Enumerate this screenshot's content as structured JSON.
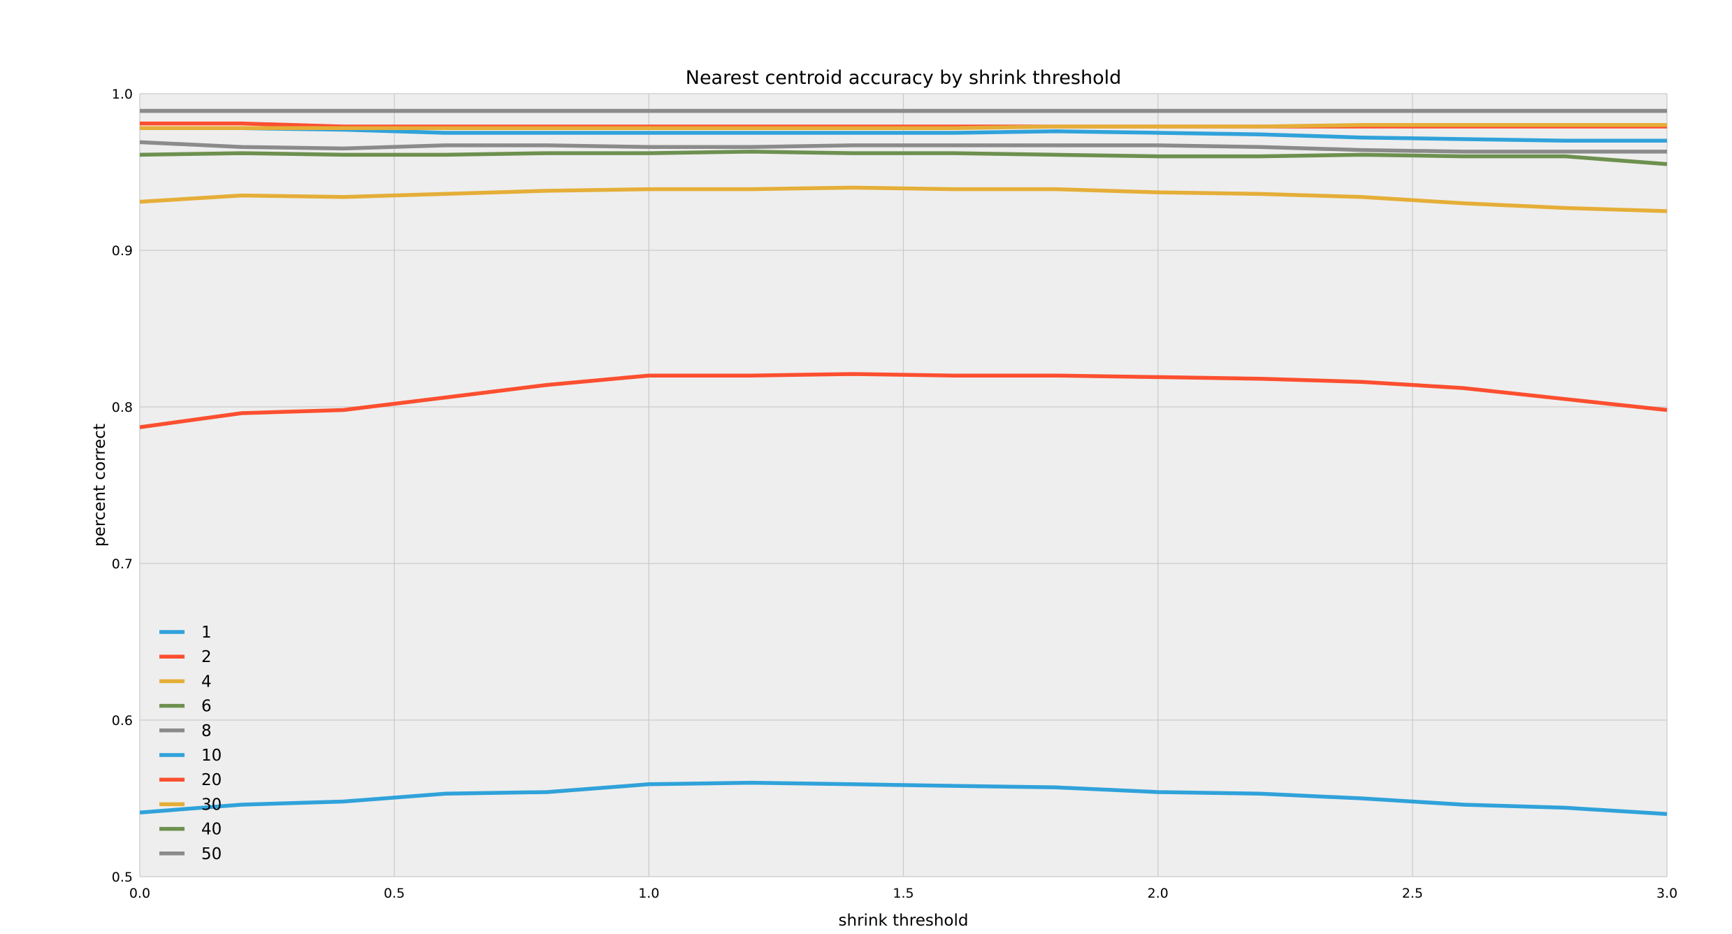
{
  "chart_data": {
    "type": "line",
    "title": "Nearest centroid accuracy by shrink threshold",
    "xlabel": "shrink threshold",
    "ylabel": "percent correct",
    "xlim": [
      0.0,
      3.0
    ],
    "ylim": [
      0.5,
      1.0
    ],
    "grid": true,
    "background_color": "#eeeeee",
    "grid_color": "#cbcbcb",
    "legend_position": "lower-left",
    "x_ticks": [
      "0.0",
      "0.5",
      "1.0",
      "1.5",
      "2.0",
      "2.5",
      "3.0"
    ],
    "y_ticks": [
      "0.5",
      "0.6",
      "0.7",
      "0.8",
      "0.9",
      "1.0"
    ],
    "x": [
      0.0,
      0.2,
      0.4,
      0.6,
      0.8,
      1.0,
      1.2,
      1.4,
      1.6,
      1.8,
      2.0,
      2.2,
      2.4,
      2.6,
      2.8,
      3.0
    ],
    "series": [
      {
        "name": "1",
        "color": "#30a2da",
        "values": [
          0.541,
          0.546,
          0.548,
          0.553,
          0.554,
          0.559,
          0.56,
          0.559,
          0.558,
          0.557,
          0.554,
          0.553,
          0.55,
          0.546,
          0.544,
          0.54
        ]
      },
      {
        "name": "2",
        "color": "#fc4f30",
        "values": [
          0.787,
          0.796,
          0.798,
          0.806,
          0.814,
          0.82,
          0.82,
          0.821,
          0.82,
          0.82,
          0.819,
          0.818,
          0.816,
          0.812,
          0.805,
          0.798
        ]
      },
      {
        "name": "4",
        "color": "#e5ae38",
        "values": [
          0.931,
          0.935,
          0.934,
          0.936,
          0.938,
          0.939,
          0.939,
          0.94,
          0.939,
          0.939,
          0.937,
          0.936,
          0.934,
          0.93,
          0.927,
          0.925
        ]
      },
      {
        "name": "6",
        "color": "#6d904f",
        "values": [
          0.961,
          0.962,
          0.961,
          0.961,
          0.962,
          0.962,
          0.963,
          0.962,
          0.962,
          0.961,
          0.96,
          0.96,
          0.961,
          0.96,
          0.96,
          0.955
        ]
      },
      {
        "name": "8",
        "color": "#8b8b8b",
        "values": [
          0.969,
          0.966,
          0.965,
          0.967,
          0.967,
          0.966,
          0.966,
          0.967,
          0.967,
          0.967,
          0.967,
          0.966,
          0.964,
          0.963,
          0.963,
          0.963
        ]
      },
      {
        "name": "10",
        "color": "#30a2da",
        "values": [
          0.978,
          0.978,
          0.977,
          0.975,
          0.975,
          0.975,
          0.975,
          0.975,
          0.975,
          0.976,
          0.975,
          0.974,
          0.972,
          0.971,
          0.97,
          0.97
        ]
      },
      {
        "name": "20",
        "color": "#fc4f30",
        "values": [
          0.981,
          0.981,
          0.979,
          0.979,
          0.979,
          0.979,
          0.979,
          0.979,
          0.979,
          0.979,
          0.979,
          0.979,
          0.979,
          0.979,
          0.979,
          0.979
        ]
      },
      {
        "name": "30",
        "color": "#e5ae38",
        "values": [
          0.978,
          0.978,
          0.978,
          0.978,
          0.978,
          0.978,
          0.978,
          0.978,
          0.978,
          0.979,
          0.979,
          0.979,
          0.98,
          0.98,
          0.98,
          0.98
        ]
      },
      {
        "name": "40",
        "color": "#6d904f",
        "values": [
          0.989,
          0.989,
          0.989,
          0.989,
          0.989,
          0.989,
          0.989,
          0.989,
          0.989,
          0.989,
          0.989,
          0.989,
          0.989,
          0.989,
          0.989,
          0.989
        ]
      },
      {
        "name": "50",
        "color": "#8b8b8b",
        "values": [
          0.989,
          0.989,
          0.989,
          0.989,
          0.989,
          0.989,
          0.989,
          0.989,
          0.989,
          0.989,
          0.989,
          0.989,
          0.989,
          0.989,
          0.989,
          0.989
        ]
      }
    ]
  }
}
